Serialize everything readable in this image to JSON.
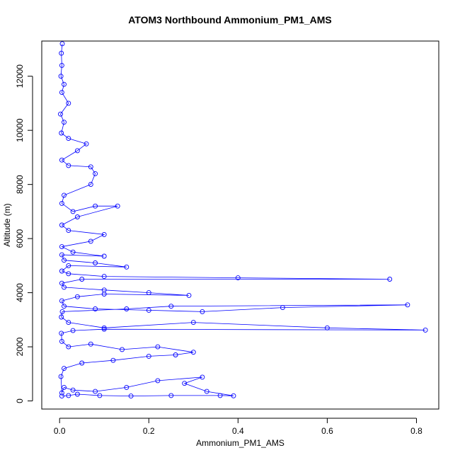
{
  "chart_data": {
    "type": "scatter",
    "title": "ATOM3 Northbound Ammonium_PM1_AMS",
    "xlabel": "Ammonium_PM1_AMS",
    "ylabel": "Altitude (m)",
    "xlim": [
      -0.04,
      0.85
    ],
    "ylim": [
      -300,
      13300
    ],
    "xticks": [
      0,
      0.2,
      0.4,
      0.6,
      0.8
    ],
    "xtick_labels": [
      "0.0",
      "0.2",
      "0.4",
      "0.6",
      "0.8"
    ],
    "yticks": [
      0,
      2000,
      4000,
      6000,
      8000,
      10000,
      12000
    ],
    "ytick_labels": [
      "0",
      "2000",
      "4000",
      "6000",
      "8000",
      "10000",
      "12000"
    ],
    "grid": false,
    "legend": "none",
    "marker": "open-circle",
    "connected": true,
    "color": "#0000ff",
    "series": [
      {
        "points": [
          [
            0.005,
            180
          ],
          [
            0.02,
            200
          ],
          [
            0.04,
            250
          ],
          [
            0.09,
            200
          ],
          [
            0.16,
            180
          ],
          [
            0.25,
            200
          ],
          [
            0.36,
            200
          ],
          [
            0.39,
            190
          ],
          [
            0.33,
            350
          ],
          [
            0.28,
            650
          ],
          [
            0.32,
            880
          ],
          [
            0.22,
            750
          ],
          [
            0.15,
            500
          ],
          [
            0.08,
            350
          ],
          [
            0.03,
            400
          ],
          [
            0.01,
            500
          ],
          [
            0.005,
            300
          ],
          [
            0.003,
            900
          ],
          [
            0.01,
            1200
          ],
          [
            0.05,
            1400
          ],
          [
            0.12,
            1500
          ],
          [
            0.2,
            1650
          ],
          [
            0.26,
            1700
          ],
          [
            0.3,
            1800
          ],
          [
            0.22,
            2000
          ],
          [
            0.14,
            1900
          ],
          [
            0.07,
            2100
          ],
          [
            0.02,
            2000
          ],
          [
            0.005,
            2200
          ],
          [
            0.004,
            2500
          ],
          [
            0.03,
            2600
          ],
          [
            0.1,
            2650
          ],
          [
            0.82,
            2620
          ],
          [
            0.6,
            2700
          ],
          [
            0.3,
            2900
          ],
          [
            0.1,
            2700
          ],
          [
            0.02,
            2900
          ],
          [
            0.004,
            3100
          ],
          [
            0.006,
            3300
          ],
          [
            0.15,
            3400
          ],
          [
            0.25,
            3500
          ],
          [
            0.78,
            3550
          ],
          [
            0.5,
            3450
          ],
          [
            0.32,
            3300
          ],
          [
            0.2,
            3350
          ],
          [
            0.08,
            3400
          ],
          [
            0.01,
            3500
          ],
          [
            0.005,
            3700
          ],
          [
            0.04,
            3850
          ],
          [
            0.1,
            3950
          ],
          [
            0.29,
            3900
          ],
          [
            0.2,
            4000
          ],
          [
            0.1,
            4100
          ],
          [
            0.01,
            4200
          ],
          [
            0.005,
            4350
          ],
          [
            0.05,
            4500
          ],
          [
            0.74,
            4500
          ],
          [
            0.4,
            4550
          ],
          [
            0.1,
            4600
          ],
          [
            0.02,
            4700
          ],
          [
            0.005,
            4800
          ],
          [
            0.02,
            5000
          ],
          [
            0.15,
            4950
          ],
          [
            0.08,
            5100
          ],
          [
            0.01,
            5200
          ],
          [
            0.005,
            5400
          ],
          [
            0.1,
            5350
          ],
          [
            0.03,
            5500
          ],
          [
            0.005,
            5700
          ],
          [
            0.07,
            5900
          ],
          [
            0.1,
            6150
          ],
          [
            0.02,
            6300
          ],
          [
            0.005,
            6500
          ],
          [
            0.04,
            6800
          ],
          [
            0.13,
            7200
          ],
          [
            0.08,
            7200
          ],
          [
            0.03,
            7000
          ],
          [
            0.005,
            7300
          ],
          [
            0.01,
            7600
          ],
          [
            0.07,
            8000
          ],
          [
            0.08,
            8400
          ],
          [
            0.07,
            8650
          ],
          [
            0.02,
            8700
          ],
          [
            0.005,
            8900
          ],
          [
            0.04,
            9250
          ],
          [
            0.06,
            9500
          ],
          [
            0.02,
            9700
          ],
          [
            0.004,
            9900
          ],
          [
            0.01,
            10300
          ],
          [
            0.002,
            10600
          ],
          [
            0.02,
            11000
          ],
          [
            0.005,
            11400
          ],
          [
            0.01,
            11700
          ],
          [
            0.003,
            12000
          ],
          [
            0.005,
            12400
          ],
          [
            0.004,
            12850
          ],
          [
            0.006,
            13200
          ]
        ]
      }
    ]
  }
}
